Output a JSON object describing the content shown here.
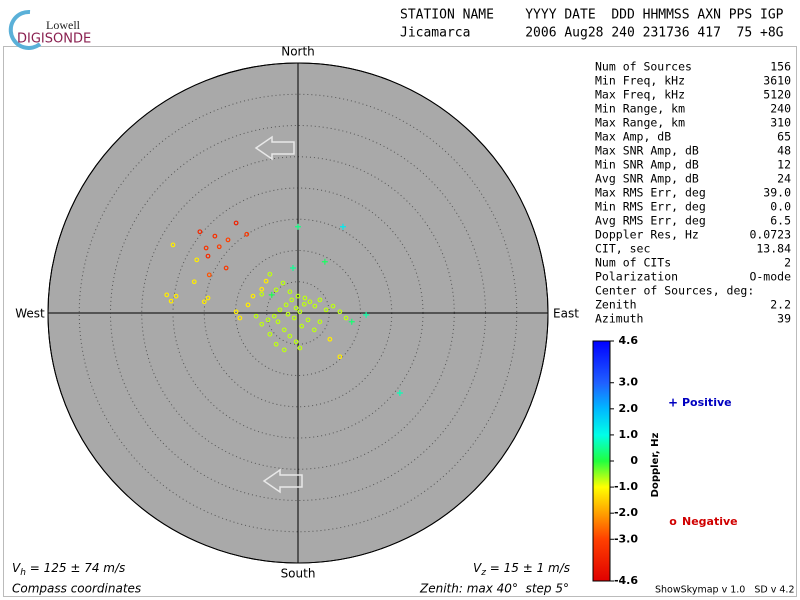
{
  "header": {
    "title_line": "STATION NAME    YYYY DATE  DDD HHMMSS AXN PPS IGP",
    "value_line": "Jicamarca       2006 Aug28 240 231736 417  75 +8G"
  },
  "logo": {
    "top": "Lowell",
    "bottom": "DIGISONDE"
  },
  "stats": {
    "rows": [
      [
        "Num of Sources",
        "156"
      ],
      [
        "Min Freq, kHz",
        "3610"
      ],
      [
        "Max Freq, kHz",
        "5120"
      ],
      [
        "Min Range, km",
        "240"
      ],
      [
        "Max Range, km",
        "310"
      ],
      [
        "Max Amp, dB",
        "65"
      ],
      [
        "Max SNR Amp, dB",
        "48"
      ],
      [
        "Min SNR Amp, dB",
        "12"
      ],
      [
        "Avg SNR Amp, dB",
        "24"
      ],
      [
        "Max RMS Err, deg",
        "39.0"
      ],
      [
        "Min RMS Err, deg",
        "0.0"
      ],
      [
        "Avg RMS Err, deg",
        "6.5"
      ],
      [
        "Doppler Res, Hz",
        "0.0723"
      ],
      [
        "CIT, sec",
        "13.84"
      ],
      [
        "Num of CITs",
        "2"
      ],
      [
        "Polarization",
        "O-mode"
      ],
      [
        "Center of Sources, deg:",
        ""
      ],
      [
        "     Zenith",
        "2.2"
      ],
      [
        "     Azimuth",
        "39"
      ]
    ]
  },
  "chart_data": {
    "type": "skymap",
    "compass": {
      "north": "North",
      "south": "South",
      "east": "East",
      "west": "West"
    },
    "rlim": [
      0,
      40
    ],
    "rticks": [
      5,
      10,
      15,
      20,
      25,
      30,
      35,
      40
    ],
    "points": {
      "east": [
        -15.7,
        -9.9,
        -13.3,
        -11.2,
        -8.2,
        -14.7,
        -14.4,
        -12.6,
        -11.5,
        -14.2,
        -20.0,
        -16.2,
        -16.6,
        -21.0,
        -19.5,
        -20.3,
        -14.4,
        -15.0,
        -5.1,
        -5.8,
        -7.2,
        -9.9,
        -9.3,
        -8.0,
        6.7,
        5.1,
        -4.5,
        -2.4,
        -1.3,
        0,
        1.1,
        1.9,
        2.7,
        3.5,
        4.5,
        5.6,
        6.7,
        7.7,
        -1.0,
        -1.9,
        -2.9,
        -3.8,
        -4.8,
        -5.8,
        -6.7,
        -3.2,
        -2.2,
        -1.3,
        -0.3,
        0.6,
        1.6,
        2.6,
        3.5,
        -0.3,
        0.3,
        1.0,
        -0.6,
        -1.6,
        -4.5,
        -3.5,
        -2.2,
        0.3,
        -5.8,
        -3.5,
        0,
        -0.8,
        4.3,
        8.6,
        10.9,
        16.3,
        7.2,
        -4.2
      ],
      "north": [
        13.0,
        14.4,
        12.3,
        11.7,
        12.6,
        10.4,
        9.1,
        10.6,
        7.2,
        6.1,
        10.9,
        8.5,
        5.0,
        2.9,
        2.7,
        1.9,
        2.4,
        1.8,
        5.1,
        3.8,
        2.7,
        0.2,
        -0.8,
        1.3,
        -7.0,
        -4.2,
        6.2,
        4.8,
        3.4,
        2.7,
        2.4,
        1.8,
        1.1,
        2.1,
        0.5,
        1.1,
        0.2,
        -0.8,
        2.1,
        1.3,
        0.5,
        -0.5,
        -1.1,
        -1.8,
        -0.5,
        -1.4,
        -2.7,
        -3.7,
        -4.6,
        -2.1,
        -1.1,
        -2.7,
        -1.4,
        0.8,
        0.2,
        1.4,
        -0.8,
        -0.2,
        -3.4,
        -5.0,
        -5.9,
        -5.6,
        3.0,
        3.7,
        13.8,
        7.2,
        8.2,
        -1.4,
        -0.3,
        -12.8,
        13.8,
        2.9
      ],
      "doppler": [
        -3.6,
        -3.8,
        -3.4,
        -3.0,
        -3.2,
        -3.3,
        -3.5,
        -3.1,
        -3.2,
        -2.8,
        -1.2,
        -1.2,
        -1.2,
        -1.2,
        -1.2,
        -1.2,
        -1.2,
        -1.2,
        -1.2,
        -1.2,
        -1.2,
        -1.2,
        -1.2,
        -1.2,
        -1.2,
        -1.2,
        -0.7,
        -0.7,
        -0.7,
        -0.7,
        -0.7,
        -0.7,
        -0.7,
        -0.7,
        -0.7,
        -0.7,
        -0.7,
        -0.7,
        -0.7,
        -0.7,
        -0.7,
        -0.7,
        -0.7,
        -0.7,
        -0.7,
        -0.7,
        -0.7,
        -0.7,
        -0.7,
        -0.7,
        -0.7,
        -0.7,
        -0.7,
        -0.7,
        -0.7,
        -0.7,
        -0.7,
        -0.7,
        -0.7,
        -0.7,
        -0.7,
        -0.7,
        -0.7,
        -0.7,
        0.4,
        0.5,
        0.2,
        0.3,
        0.6,
        0.7,
        1.3,
        0.1
      ]
    },
    "colorbar": {
      "label": "Doppler, Hz",
      "ticks": [
        4.6,
        {
          "value": 3,
          "label": "3.0"
        },
        {
          "value": 2,
          "label": "2.0"
        },
        {
          "value": 1,
          "label": "1.0"
        },
        0,
        {
          "value": -1,
          "label": "-1.0"
        },
        {
          "value": -2,
          "label": "-2.0"
        },
        {
          "value": -3,
          "label": "-3.0"
        },
        -4.6
      ],
      "colors": [
        "#0000ff",
        "#2060ff",
        "#00b8ff",
        "#00ffe8",
        "#20ff40",
        "#ffff00",
        "#ffa000",
        "#ff4000",
        "#e00000"
      ]
    },
    "legend": {
      "positive": {
        "symbol": "+",
        "label": "Positive",
        "color": "#0000c0"
      },
      "negative": {
        "symbol": "o",
        "label": "Negative",
        "color": "#d00000"
      }
    }
  },
  "footer": {
    "vh": {
      "symbol": "V",
      "sub": "h",
      "text": " = 125 ± 74 m/s"
    },
    "vz": {
      "symbol": "V",
      "sub": "z",
      "text": " = 15 ± 1 m/s"
    },
    "coords": "Compass coordinates",
    "zenith": "Zenith: max 40°  step 5°",
    "version": "ShowSkymap v 1.0   SD v 4.2"
  }
}
